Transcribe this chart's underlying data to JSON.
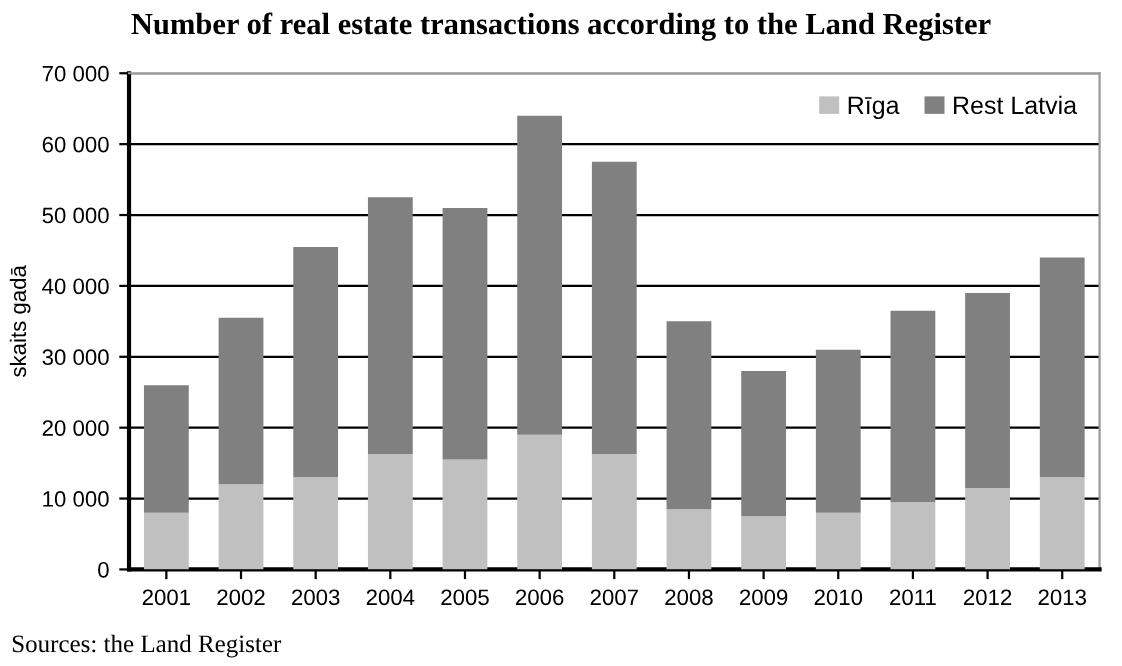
{
  "chart_data": {
    "type": "bar",
    "stacked": true,
    "title": "Number of real estate transactions according to the Land Register",
    "ylabel": "skaits gadā",
    "categories": [
      "2001",
      "2002",
      "2003",
      "2004",
      "2005",
      "2006",
      "2007",
      "2008",
      "2009",
      "2010",
      "2011",
      "2012",
      "2013"
    ],
    "series": [
      {
        "name": "Rīga",
        "color": "#c0c0c0",
        "values": [
          8000,
          12000,
          13000,
          16300,
          15500,
          19000,
          16300,
          8500,
          7500,
          8000,
          9500,
          11500,
          13000
        ]
      },
      {
        "name": "Rest Latvia",
        "color": "#808080",
        "values": [
          18000,
          23500,
          32500,
          36200,
          35500,
          45000,
          41200,
          26500,
          20500,
          23000,
          27000,
          27500,
          31000
        ]
      }
    ],
    "ylim": [
      0,
      70000
    ],
    "yticks": [
      0,
      {
        "value": 10000,
        "label": "10 000"
      },
      {
        "value": 20000,
        "label": "20 000"
      },
      {
        "value": 30000,
        "label": "30 000"
      },
      {
        "value": 40000,
        "label": "40 000"
      },
      {
        "value": 50000,
        "label": "50 000"
      },
      {
        "value": 60000,
        "label": "60 000"
      },
      {
        "value": 70000,
        "label": "70 000"
      }
    ],
    "grid": "y",
    "legend": "top right",
    "annotations": [
      "Sources: the Land Register"
    ]
  }
}
